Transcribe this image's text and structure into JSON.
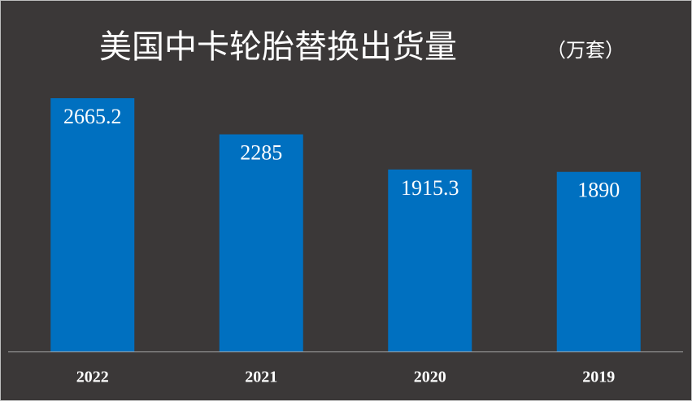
{
  "chart_data": {
    "type": "bar",
    "title": "美国中卡轮胎替换出货量",
    "subtitle": "（万套）",
    "categories": [
      "2022",
      "2021",
      "2020",
      "2019"
    ],
    "values": [
      2665.2,
      2285,
      1915.3,
      1890
    ],
    "color": "#0070c0"
  }
}
